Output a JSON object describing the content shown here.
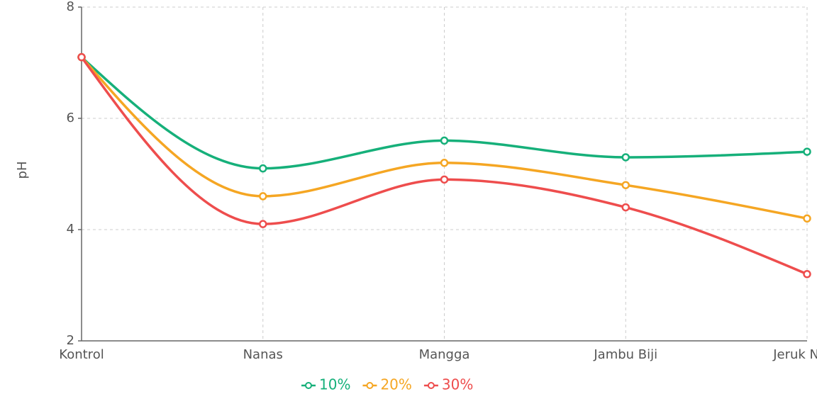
{
  "chart_data": {
    "type": "line",
    "y_label": "pH",
    "categories": [
      "Kontrol",
      "Nanas",
      "Mangga",
      "Jambu Biji",
      "Jeruk Nipis"
    ],
    "series": [
      {
        "name": "10%",
        "color": "#16b07a",
        "values": [
          7.1,
          5.1,
          5.6,
          5.3,
          5.4
        ]
      },
      {
        "name": "20%",
        "color": "#f5a623",
        "values": [
          7.1,
          4.6,
          5.2,
          4.8,
          4.2
        ]
      },
      {
        "name": "30%",
        "color": "#ee4d4d",
        "values": [
          7.1,
          4.1,
          4.9,
          4.4,
          3.2
        ]
      }
    ],
    "ylim": [
      2,
      8
    ],
    "yticks": [
      2,
      4,
      6,
      8
    ],
    "grid": true,
    "legend": "bottom"
  }
}
